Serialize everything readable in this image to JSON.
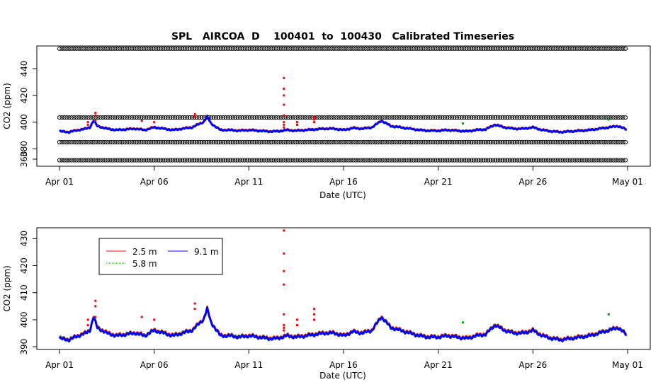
{
  "chart_data": [
    {
      "type": "scatter",
      "title": "SPL   AIRCOA  D    100401  to  100430   Calibrated Timeseries",
      "xlabel": "Date (UTC)",
      "ylabel": "CO2 (ppm)",
      "xlim": [
        0,
        30
      ],
      "ylim": [
        367,
        457
      ],
      "x_ticks": [
        0,
        5,
        10,
        15,
        20,
        25,
        30
      ],
      "x_tick_labels": [
        "Apr 01",
        "Apr 06",
        "Apr 11",
        "Apr 16",
        "Apr 21",
        "Apr 26",
        "May 01"
      ],
      "y_ticks": [
        380,
        400,
        420,
        440
      ],
      "y_tick_labels": [
        "380",
        "400",
        "420",
        "440"
      ],
      "y_ticks_minor": [
        360
      ],
      "y_tick_labels_minor": [
        "360"
      ],
      "reference_levels": [
        {
          "name": "calibration-high",
          "value": 455,
          "color": "#000000"
        },
        {
          "name": "calibration-mid-high",
          "value": 403.5,
          "color": "#000000"
        },
        {
          "name": "calibration-mid-low",
          "value": 385,
          "color": "#000000"
        },
        {
          "name": "calibration-low",
          "value": 371.5,
          "color": "#000000"
        }
      ],
      "series_colors": {
        "2.5 m": "#ff0000",
        "5.8 m": "#00a000",
        "9.1 m": "#0000ff"
      },
      "spikes": [
        {
          "x": 11.85,
          "values": [
            433,
            425,
            420,
            413,
            405,
            400,
            398,
            396
          ],
          "color": "#ff0000"
        }
      ]
    },
    {
      "type": "line",
      "title": "",
      "xlabel": "Date (UTC)",
      "ylabel": "CO2 (ppm)",
      "xlim": [
        0,
        30
      ],
      "ylim": [
        389,
        434
      ],
      "x_ticks": [
        0,
        5,
        10,
        15,
        20,
        25,
        30
      ],
      "x_tick_labels": [
        "Apr 01",
        "Apr 06",
        "Apr 11",
        "Apr 16",
        "Apr 21",
        "Apr 26",
        "May 01"
      ],
      "y_ticks": [
        390,
        400,
        410,
        420,
        430
      ],
      "y_tick_labels": [
        "390",
        "400",
        "410",
        "420",
        "430"
      ],
      "legend": {
        "placement": "top-left",
        "entries": [
          {
            "label": "2.5 m",
            "color": "#ff0000"
          },
          {
            "label": "5.8 m",
            "color": "#00a000"
          },
          {
            "label": "9.1 m",
            "color": "#0000ff"
          }
        ]
      },
      "baseline": {
        "x": [
          0,
          0.5,
          1,
          1.4,
          1.6,
          1.8,
          2,
          2.5,
          3,
          3.5,
          4,
          4.5,
          5,
          5.5,
          6,
          6.5,
          7,
          7.3,
          7.6,
          7.8,
          8,
          8.5,
          9,
          9.5,
          10,
          10.5,
          11,
          11.5,
          12,
          12.5,
          13,
          13.5,
          14,
          14.5,
          15,
          15.5,
          16,
          16.5,
          17,
          17.5,
          18,
          18.5,
          19,
          19.5,
          20,
          20.5,
          21,
          21.5,
          22,
          22.5,
          23,
          23.5,
          24,
          24.5,
          25,
          25.5,
          26,
          26.5,
          27,
          27.5,
          28,
          28.5,
          29,
          29.5,
          30
        ],
        "y": [
          393,
          392.5,
          394,
          395,
          396,
          401,
          397,
          395,
          394,
          394.5,
          395,
          394,
          396,
          395,
          394,
          395,
          396,
          398,
          400,
          404,
          399,
          394,
          394,
          393.5,
          394,
          393.5,
          393,
          393,
          394,
          393.5,
          394,
          394.5,
          395,
          395,
          394,
          395.5,
          395,
          396,
          401,
          397,
          396,
          395,
          394,
          393.5,
          393.5,
          394,
          393.5,
          393,
          394,
          394.5,
          398,
          396,
          395,
          395,
          396,
          394,
          393,
          392.5,
          393,
          393.5,
          394,
          395,
          396,
          397,
          394
        ]
      },
      "spikes": [
        {
          "series": "2.5 m",
          "x": 11.85,
          "values": [
            433,
            424.5,
            418,
            413,
            402,
            398,
            397,
            396
          ]
        },
        {
          "series": "2.5 m",
          "x": 1.9,
          "values": [
            407,
            405,
            401
          ]
        },
        {
          "series": "2.5 m",
          "x": 1.5,
          "values": [
            400,
            398
          ]
        },
        {
          "series": "2.5 m",
          "x": 4.35,
          "values": [
            401
          ]
        },
        {
          "series": "2.5 m",
          "x": 5,
          "values": [
            400
          ]
        },
        {
          "series": "2.5 m",
          "x": 12.55,
          "values": [
            400,
            398
          ]
        },
        {
          "series": "2.5 m",
          "x": 13.45,
          "values": [
            404,
            402,
            400
          ]
        },
        {
          "series": "2.5 m",
          "x": 7.15,
          "values": [
            406,
            404
          ]
        },
        {
          "series": "5.8 m",
          "x": 21.3,
          "values": [
            399
          ]
        },
        {
          "series": "5.8 m",
          "x": 29,
          "values": [
            402
          ]
        }
      ]
    }
  ]
}
